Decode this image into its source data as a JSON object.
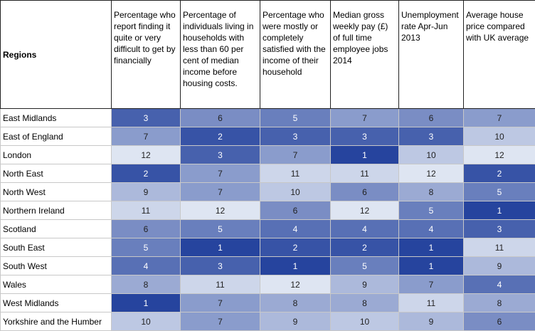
{
  "table": {
    "headers": [
      "Regions",
      "Percentage who report finding it quite or very difficult to get by financially",
      "Percentage of individuals living in households with less than 60 per cent of median income before housing costs.",
      "Percentage who were mostly or completely satisfied with the income of their household",
      "Median gross weekly pay (£) of full time employee jobs 2014",
      "Unemployment rate Apr-Jun 2013",
      "Average house price compared with UK average"
    ],
    "rows": [
      [
        "East Midlands",
        3,
        6,
        5,
        7,
        6,
        7
      ],
      [
        "East of England",
        7,
        2,
        3,
        3,
        3,
        10
      ],
      [
        "London",
        12,
        3,
        7,
        1,
        10,
        12
      ],
      [
        "North East",
        2,
        7,
        11,
        11,
        12,
        2
      ],
      [
        "North West",
        9,
        7,
        10,
        6,
        8,
        5
      ],
      [
        "Northern Ireland",
        11,
        12,
        6,
        12,
        5,
        1
      ],
      [
        "Scotland",
        6,
        5,
        4,
        4,
        4,
        3
      ],
      [
        "South East",
        5,
        1,
        2,
        2,
        1,
        11
      ],
      [
        "South West",
        4,
        3,
        1,
        5,
        1,
        9
      ],
      [
        "Wales",
        8,
        11,
        12,
        9,
        7,
        4
      ],
      [
        "West Midlands",
        1,
        7,
        8,
        8,
        11,
        8
      ],
      [
        "Yorkshire and the Humber",
        10,
        7,
        9,
        10,
        9,
        6
      ]
    ]
  }
}
